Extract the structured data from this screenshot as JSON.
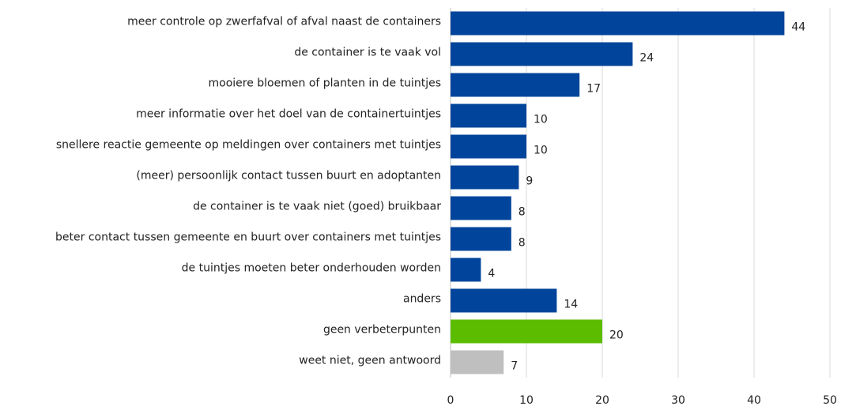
{
  "chart_data": {
    "type": "hbar",
    "categories": [
      "meer controle op zwerfafval of afval naast de containers",
      "de container is te vaak vol",
      "mooiere bloemen of planten in de tuintjes",
      "meer informatie over het doel van de containertuintjes",
      "snellere reactie gemeente op meldingen over containers met tuintjes",
      "(meer) persoonlijk contact tussen buurt en adoptanten",
      "de container is te vaak niet (goed) bruikbaar",
      "beter contact tussen gemeente en buurt over containers met tuintjes",
      "de tuintjes moeten beter onderhouden worden",
      "anders",
      "geen verbeterpunten",
      "weet niet, geen antwoord"
    ],
    "values": [
      44,
      24,
      17,
      10,
      10,
      9,
      8,
      8,
      4,
      14,
      20,
      7
    ],
    "colors": [
      "#00449b",
      "#00449b",
      "#00449b",
      "#00449b",
      "#00449b",
      "#00449b",
      "#00449b",
      "#00449b",
      "#00449b",
      "#00449b",
      "#5cbd00",
      "#bfbfbf"
    ],
    "xlim": [
      0,
      50
    ],
    "xticks": [
      0,
      10,
      20,
      30,
      40,
      50
    ],
    "grid": true
  }
}
